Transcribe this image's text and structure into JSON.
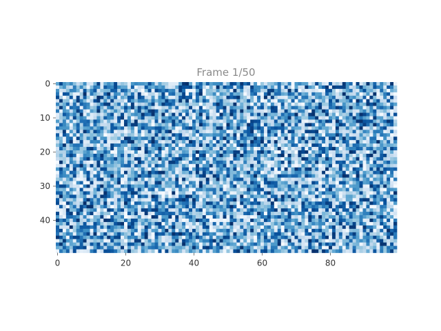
{
  "chart_data": {
    "type": "heatmap",
    "title": "Frame 1/50",
    "xlabel": "",
    "ylabel": "",
    "grid_size": [
      50,
      100
    ],
    "x_range": [
      0,
      99
    ],
    "y_range": [
      0,
      49
    ],
    "y_inverted": true,
    "x_ticks": [
      0,
      20,
      40,
      60,
      80
    ],
    "y_ticks": [
      0,
      10,
      20,
      30,
      40
    ],
    "x_tick_labels": [
      "0",
      "20",
      "40",
      "60",
      "80"
    ],
    "y_tick_labels": [
      "0",
      "10",
      "20",
      "30",
      "40"
    ],
    "value_range": [
      0,
      1
    ],
    "colormap": "Blues",
    "colormap_stops": [
      "#f7fbff",
      "#deebf7",
      "#c6dbef",
      "#9ecae1",
      "#6baed6",
      "#4292c6",
      "#2171b5",
      "#08519c",
      "#08306b"
    ],
    "grid": false,
    "legend": "none"
  }
}
